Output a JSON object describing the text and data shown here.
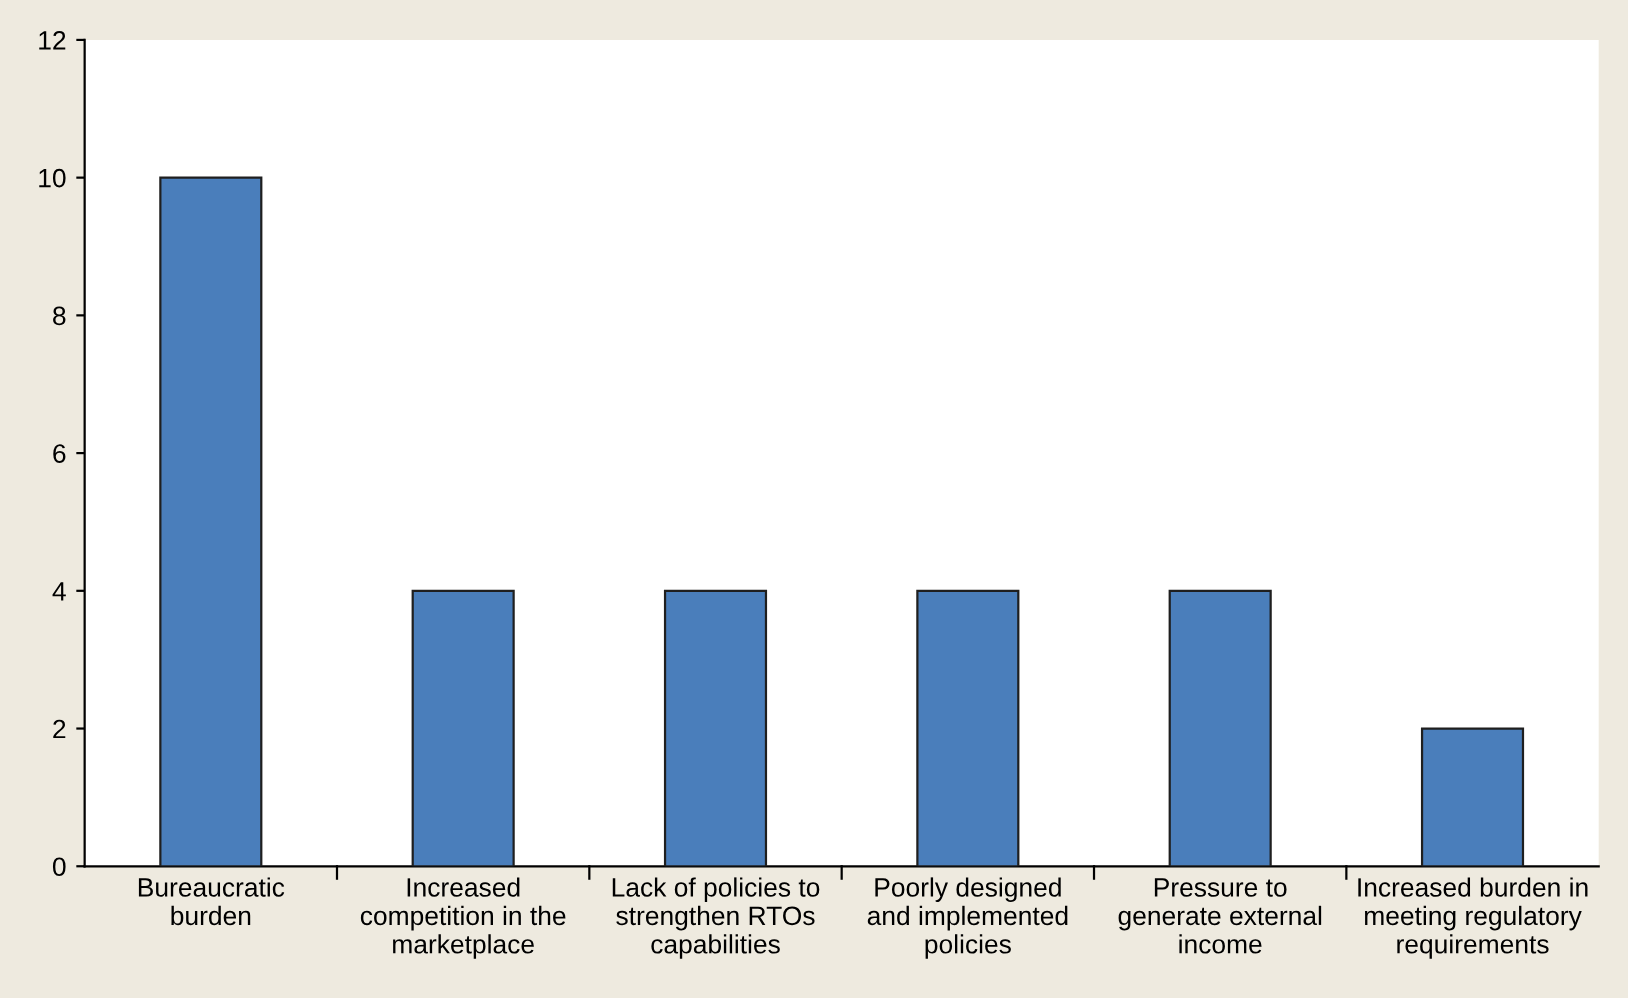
{
  "chart_data": {
    "type": "bar",
    "categories": [
      "Bureaucratic\nburden",
      "Increased\ncompetition in the\nmarketplace",
      "Lack of policies to\nstrengthen RTOs\ncapabilities",
      "Poorly designed\nand implemented\npolicies",
      "Pressure to\ngenerate external\nincome",
      "Increased burden in\nmeeting regulatory\nrequirements"
    ],
    "values": [
      10,
      4,
      4,
      4,
      4,
      2
    ],
    "color": "#4a7ebb",
    "ylim": [
      0,
      12
    ],
    "yticks": [
      0,
      2,
      4,
      6,
      8,
      10,
      12
    ],
    "grid": false
  }
}
